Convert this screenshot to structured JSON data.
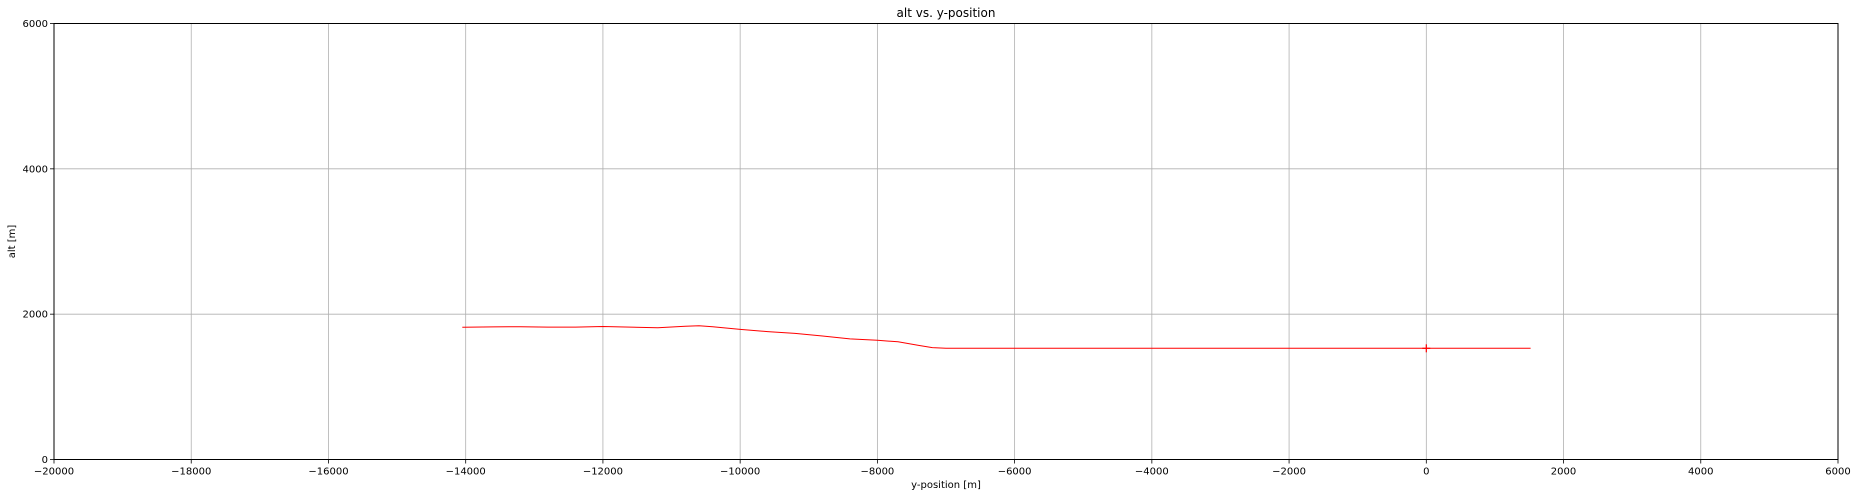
{
  "chart_data": {
    "type": "line",
    "title": "alt vs. y-position",
    "xlabel": "y-position [m]",
    "ylabel": "alt [m]",
    "xlim": [
      -20000,
      6000
    ],
    "ylim": [
      0,
      6000
    ],
    "x_ticks": [
      -20000,
      -18000,
      -16000,
      -14000,
      -12000,
      -10000,
      -8000,
      -6000,
      -4000,
      -2000,
      0,
      2000,
      4000,
      6000
    ],
    "x_tick_labels": [
      "−20000",
      "−18000",
      "−16000",
      "−14000",
      "−12000",
      "−10000",
      "−8000",
      "−6000",
      "−4000",
      "−2000",
      "0",
      "2000",
      "4000",
      "6000"
    ],
    "y_ticks": [
      0,
      2000,
      4000,
      6000
    ],
    "y_tick_labels": [
      "0",
      "2000",
      "4000",
      "6000"
    ],
    "grid": true,
    "series": [
      {
        "color": "#ff0000",
        "x": [
          -14050,
          -13600,
          -13200,
          -12800,
          -12400,
          -12000,
          -11600,
          -11200,
          -10800,
          -10600,
          -10400,
          -10000,
          -9600,
          -9200,
          -8800,
          -8400,
          -8000,
          -7700,
          -7400,
          -7200,
          -7000,
          -6500,
          -6000,
          -4000,
          -2000,
          0,
          400,
          800,
          1200,
          1520
        ],
        "y": [
          1820,
          1825,
          1828,
          1822,
          1822,
          1830,
          1822,
          1812,
          1835,
          1840,
          1828,
          1790,
          1760,
          1735,
          1700,
          1660,
          1640,
          1620,
          1570,
          1540,
          1530,
          1530,
          1530,
          1530,
          1530,
          1530,
          1530,
          1530,
          1530,
          1530
        ]
      }
    ],
    "markers": [
      {
        "type": "plus",
        "x": 0,
        "y": 1530,
        "color": "#ff0000"
      }
    ]
  }
}
